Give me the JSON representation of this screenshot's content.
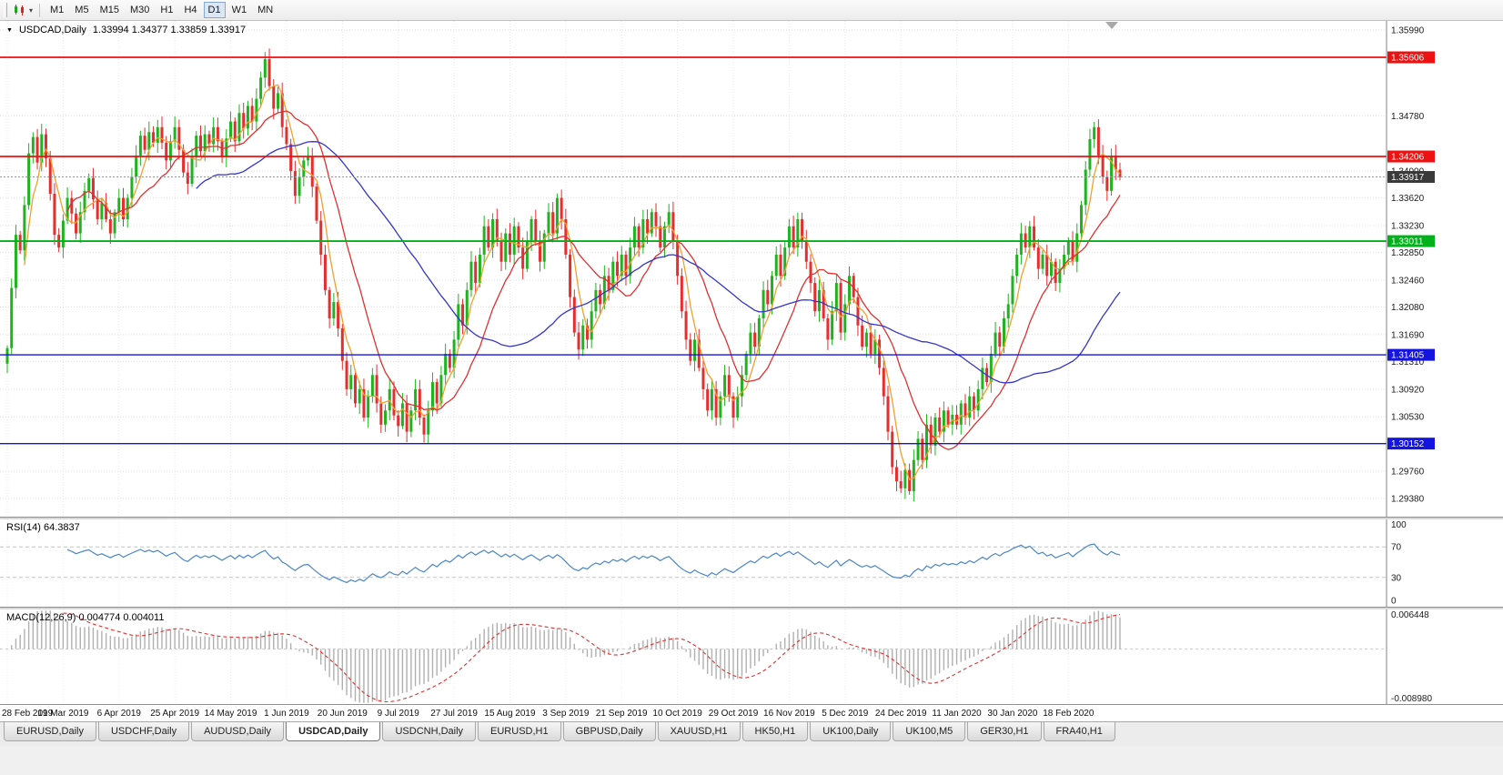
{
  "toolbar": {
    "timeframes": [
      "M1",
      "M5",
      "M15",
      "M30",
      "H1",
      "H4",
      "D1",
      "W1",
      "MN"
    ],
    "active_timeframe": "D1"
  },
  "chart": {
    "header_title": "USDCAD,Daily",
    "header_ohlc": "1.33994 1.34377 1.33859 1.33917"
  },
  "chart_data": {
    "type": "candlestick",
    "symbol": "USDCAD",
    "period": "Daily",
    "x_ticks": [
      "28 Feb 2019",
      "19 Mar 2019",
      "6 Apr 2019",
      "25 Apr 2019",
      "14 May 2019",
      "1 Jun 2019",
      "20 Jun 2019",
      "9 Jul 2019",
      "27 Jul 2019",
      "15 Aug 2019",
      "3 Sep 2019",
      "21 Sep 2019",
      "10 Oct 2019",
      "29 Oct 2019",
      "16 Nov 2019",
      "5 Dec 2019",
      "24 Dec 2019",
      "11 Jan 2020",
      "30 Jan 2020",
      "18 Feb 2020"
    ],
    "bars_per_tick": 13,
    "y_axis_labels": [
      "1.35990",
      "1.34780",
      "1.34000",
      "1.33620",
      "1.33230",
      "1.32850",
      "1.32460",
      "1.32080",
      "1.31690",
      "1.31310",
      "1.30920",
      "1.30530",
      "1.29760",
      "1.29380"
    ],
    "y_range": [
      1.2912,
      1.3612
    ],
    "bull_color": "#1fb41f",
    "bear_color": "#e62e2e",
    "closes": [
      1.315,
      1.3235,
      1.331,
      1.3288,
      1.3352,
      1.3425,
      1.3448,
      1.3412,
      1.3452,
      1.3418,
      1.3368,
      1.331,
      1.3292,
      1.333,
      1.3362,
      1.334,
      1.3312,
      1.3342,
      1.3372,
      1.339,
      1.336,
      1.3332,
      1.3355,
      1.3332,
      1.3312,
      1.3342,
      1.3362,
      1.3332,
      1.3362,
      1.3392,
      1.3422,
      1.345,
      1.343,
      1.3455,
      1.344,
      1.3462,
      1.344,
      1.3415,
      1.3442,
      1.3462,
      1.343,
      1.3398,
      1.3382,
      1.342,
      1.345,
      1.3428,
      1.3452,
      1.3438,
      1.3462,
      1.3442,
      1.342,
      1.3446,
      1.347,
      1.3442,
      1.3482,
      1.346,
      1.3492,
      1.347,
      1.3502,
      1.3532,
      1.3558,
      1.352,
      1.3488,
      1.351,
      1.3462,
      1.3438,
      1.34,
      1.3365,
      1.3392,
      1.3415,
      1.342,
      1.3378,
      1.333,
      1.3282,
      1.3232,
      1.3192,
      1.3215,
      1.3178,
      1.3132,
      1.3092,
      1.3112,
      1.3072,
      1.3092,
      1.3052,
      1.3082,
      1.3112,
      1.3072,
      1.3042,
      1.3062,
      1.3092,
      1.3055,
      1.304,
      1.3072,
      1.3032,
      1.3062,
      1.3092,
      1.3052,
      1.3028,
      1.3062,
      1.3102,
      1.3072,
      1.3112,
      1.3142,
      1.3122,
      1.3162,
      1.3212,
      1.3182,
      1.3232,
      1.3272,
      1.3242,
      1.3282,
      1.3322,
      1.3292,
      1.3332,
      1.3302,
      1.3272,
      1.3312,
      1.3282,
      1.3322,
      1.3292,
      1.3262,
      1.3302,
      1.3332,
      1.3302,
      1.3272,
      1.3312,
      1.3342,
      1.3312,
      1.3362,
      1.3332,
      1.3282,
      1.3222,
      1.3172,
      1.3148,
      1.3182,
      1.3162,
      1.3202,
      1.3232,
      1.3212,
      1.3252,
      1.3232,
      1.3272,
      1.3252,
      1.3282,
      1.3252,
      1.3292,
      1.3322,
      1.3292,
      1.3332,
      1.3312,
      1.3342,
      1.3322,
      1.3292,
      1.3322,
      1.3342,
      1.3302,
      1.3252,
      1.3202,
      1.3162,
      1.3132,
      1.3162,
      1.3122,
      1.3092,
      1.3062,
      1.3092,
      1.3052,
      1.3082,
      1.3112,
      1.3082,
      1.3052,
      1.3082,
      1.3112,
      1.3142,
      1.3172,
      1.3152,
      1.3192,
      1.3232,
      1.3212,
      1.3252,
      1.3282,
      1.3252,
      1.3292,
      1.3322,
      1.3292,
      1.3332,
      1.3302,
      1.3272,
      1.3242,
      1.3202,
      1.3232,
      1.3192,
      1.3162,
      1.3202,
      1.3242,
      1.3172,
      1.3212,
      1.3252,
      1.3222,
      1.3182,
      1.3152,
      1.3172,
      1.3142,
      1.3162,
      1.3122,
      1.3082,
      1.3032,
      1.2982,
      1.2962,
      1.2952,
      1.2978,
      1.2948,
      1.2992,
      1.3022,
      1.2992,
      1.3042,
      1.3012,
      1.3052,
      1.3032,
      1.3062,
      1.3042,
      1.3056,
      1.3042,
      1.3072,
      1.3052,
      1.3082,
      1.3062,
      1.3092,
      1.3122,
      1.3102,
      1.3142,
      1.3172,
      1.3152,
      1.3192,
      1.3212,
      1.3252,
      1.3282,
      1.3312,
      1.3292,
      1.3322,
      1.3292,
      1.3262,
      1.3282,
      1.3252,
      1.3272,
      1.3242,
      1.3262,
      1.3282,
      1.3302,
      1.3272,
      1.3312,
      1.3352,
      1.3402,
      1.3445,
      1.3462,
      1.3422,
      1.3392,
      1.3372,
      1.3422,
      1.3402,
      1.33917
    ],
    "moving_averages": [
      {
        "period": 5,
        "color": "#f0a030"
      },
      {
        "period": 15,
        "color": "#e03030"
      },
      {
        "period": 45,
        "color": "#3535cc"
      }
    ],
    "hlines": [
      {
        "price": 1.35606,
        "label": "1.35606",
        "color": "#ee1111"
      },
      {
        "price": 1.34206,
        "label": "1.34206",
        "color": "#ee1111"
      },
      {
        "price": 1.33011,
        "label": "1.33011",
        "color": "#00b21a"
      },
      {
        "price": 1.31405,
        "label": "1.31405",
        "color": "#1414e0"
      },
      {
        "price": 1.30152,
        "label": "1.30152",
        "color": "#1414e0"
      }
    ],
    "current_price": {
      "value": 1.33917,
      "label": "1.33917",
      "tag_color": "#3a3a3a"
    }
  },
  "rsi": {
    "label": "RSI(14) 64.3837",
    "period": 14,
    "value": 64.3837,
    "axis_labels": [
      "100",
      "70",
      "30",
      "0"
    ],
    "levels": [
      70,
      30
    ],
    "line_color": "#4a86c8"
  },
  "macd": {
    "label": "MACD(12,26,9) 0.004774 0.004011",
    "values": [
      0.004774,
      0.004011
    ],
    "axis_labels": [
      "0.006448",
      "-0.008980"
    ],
    "y_range": [
      -0.0096,
      0.0069
    ],
    "histogram_color": "#b0b0b0",
    "signal_color": "#e03030"
  },
  "tabs": {
    "items": [
      "EURUSD,Daily",
      "USDCHF,Daily",
      "AUDUSD,Daily",
      "USDCAD,Daily",
      "USDCNH,Daily",
      "EURUSD,H1",
      "GBPUSD,Daily",
      "XAUUSD,H1",
      "HK50,H1",
      "UK100,Daily",
      "UK100,M5",
      "GER30,H1",
      "FRA40,H1"
    ],
    "active": "USDCAD,Daily"
  }
}
